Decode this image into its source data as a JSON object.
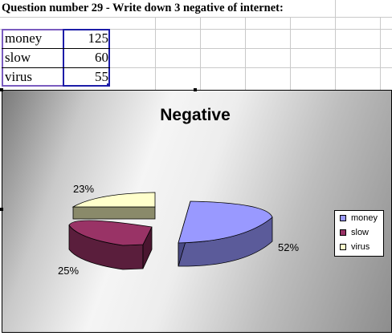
{
  "sheet": {
    "title": "Question number 29 - Write down 3 negative of internet:",
    "rows": [
      {
        "label": "money",
        "value": "125"
      },
      {
        "label": "slow",
        "value": "60"
      },
      {
        "label": "virus",
        "value": "55"
      }
    ]
  },
  "chart_data": {
    "type": "pie",
    "title": "Negative",
    "categories": [
      "money",
      "slow",
      "virus"
    ],
    "values": [
      125,
      60,
      55
    ],
    "percent_labels": [
      "52%",
      "25%",
      "23%"
    ],
    "colors": {
      "money": "#9999ff",
      "slow": "#993366",
      "virus": "#ffffcc"
    },
    "legend_position": "right",
    "exploded": true,
    "three_d": true
  },
  "legend": {
    "items": [
      {
        "label": "money",
        "color": "#9999ff"
      },
      {
        "label": "slow",
        "color": "#993366"
      },
      {
        "label": "virus",
        "color": "#ffffcc"
      }
    ]
  }
}
